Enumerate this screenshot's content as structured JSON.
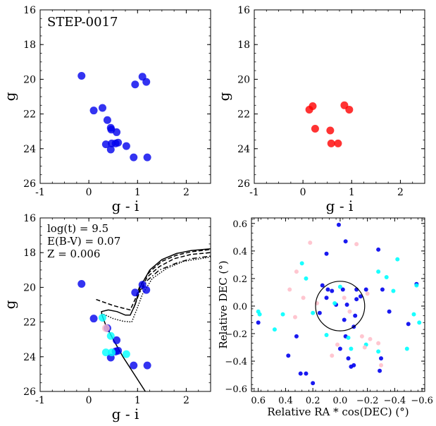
{
  "chart_data": [
    {
      "type": "scatter",
      "panel": "top-left",
      "annotation": "STEP-0017",
      "xlabel": "g - i",
      "ylabel": "g",
      "xlim": [
        -1,
        2.5
      ],
      "ylim": [
        26,
        16
      ],
      "y_inverted": true,
      "xticks": [
        -1,
        0,
        1,
        2
      ],
      "yticks": [
        16,
        18,
        20,
        22,
        24,
        26
      ],
      "series": [
        {
          "color": "#0000ee",
          "points": [
            [
              -0.15,
              19.8
            ],
            [
              1.1,
              19.85
            ],
            [
              1.18,
              20.15
            ],
            [
              0.95,
              20.3
            ],
            [
              0.1,
              21.8
            ],
            [
              0.28,
              21.65
            ],
            [
              0.38,
              22.35
            ],
            [
              0.45,
              22.8
            ],
            [
              0.46,
              22.9
            ],
            [
              0.57,
              23.05
            ],
            [
              0.35,
              23.75
            ],
            [
              0.47,
              23.7
            ],
            [
              0.55,
              23.7
            ],
            [
              0.6,
              23.65
            ],
            [
              0.77,
              23.85
            ],
            [
              0.45,
              24.05
            ],
            [
              0.92,
              24.5
            ],
            [
              1.2,
              24.5
            ]
          ]
        }
      ]
    },
    {
      "type": "scatter",
      "panel": "top-right",
      "xlabel": "g - i",
      "ylabel": "g",
      "xlim": [
        -1,
        2.5
      ],
      "ylim": [
        26,
        16
      ],
      "y_inverted": true,
      "xticks": [
        -1,
        0,
        1,
        2
      ],
      "yticks": [
        16,
        18,
        20,
        22,
        24,
        26
      ],
      "series": [
        {
          "color": "#ff0000",
          "points": [
            [
              0.13,
              21.75
            ],
            [
              0.2,
              21.55
            ],
            [
              0.85,
              21.5
            ],
            [
              0.95,
              21.75
            ],
            [
              0.25,
              22.85
            ],
            [
              0.56,
              22.95
            ],
            [
              0.58,
              23.7
            ],
            [
              0.72,
              23.7
            ]
          ]
        }
      ]
    },
    {
      "type": "scatter",
      "panel": "bottom-left",
      "annotations": [
        "log(t) = 9.5",
        "E(B-V) = 0.07",
        "Z = 0.006"
      ],
      "xlabel": "g - i",
      "ylabel": "g",
      "xlim": [
        -1,
        2.5
      ],
      "ylim": [
        26,
        16
      ],
      "y_inverted": true,
      "xticks": [
        -1,
        0,
        1,
        2
      ],
      "yticks": [
        16,
        18,
        20,
        22,
        24,
        26
      ],
      "series": [
        {
          "color": "#0000ee",
          "points": [
            [
              -0.15,
              19.8
            ],
            [
              1.1,
              19.85
            ],
            [
              1.18,
              20.15
            ],
            [
              0.95,
              20.3
            ],
            [
              0.1,
              21.8
            ],
            [
              0.38,
              22.35
            ],
            [
              0.57,
              23.05
            ],
            [
              0.45,
              24.05
            ],
            [
              0.55,
              23.7
            ],
            [
              0.6,
              23.65
            ],
            [
              0.92,
              24.5
            ],
            [
              1.2,
              24.5
            ]
          ]
        },
        {
          "color": "#00ffff",
          "points": [
            [
              0.28,
              21.75
            ],
            [
              0.45,
              22.8
            ],
            [
              0.35,
              23.75
            ],
            [
              0.47,
              23.75
            ],
            [
              0.77,
              23.85
            ]
          ]
        },
        {
          "color": "#ffc0cb",
          "points": [
            [
              0.35,
              22.35
            ]
          ]
        }
      ],
      "isochrones": [
        {
          "style": "solid",
          "points": [
            [
              1.16,
              26.0
            ],
            [
              0.93,
              25.0
            ],
            [
              0.7,
              24.0
            ],
            [
              0.5,
              23.0
            ],
            [
              0.35,
              22.2
            ],
            [
              0.27,
              21.6
            ],
            [
              0.26,
              21.4
            ],
            [
              0.4,
              21.3
            ],
            [
              0.58,
              21.4
            ],
            [
              0.75,
              21.6
            ],
            [
              0.85,
              21.6
            ],
            [
              0.95,
              21.0
            ],
            [
              1.05,
              20.0
            ],
            [
              1.25,
              19.0
            ],
            [
              1.5,
              18.4
            ],
            [
              1.8,
              18.05
            ],
            [
              2.1,
              17.88
            ],
            [
              2.5,
              17.78
            ]
          ]
        },
        {
          "style": "dashed",
          "points": [
            [
              0.15,
              20.7
            ],
            [
              0.3,
              20.85
            ],
            [
              0.5,
              21.05
            ],
            [
              0.7,
              21.2
            ],
            [
              0.85,
              21.3
            ],
            [
              0.95,
              20.7
            ],
            [
              1.05,
              19.9
            ],
            [
              1.25,
              19.1
            ],
            [
              1.5,
              18.5
            ],
            [
              1.8,
              18.15
            ],
            [
              2.1,
              17.95
            ],
            [
              2.5,
              17.82
            ]
          ]
        },
        {
          "style": "dotted",
          "points": [
            [
              0.3,
              21.55
            ],
            [
              0.5,
              21.8
            ],
            [
              0.7,
              21.95
            ],
            [
              0.88,
              22.0
            ],
            [
              0.98,
              21.3
            ],
            [
              1.1,
              20.4
            ],
            [
              1.3,
              19.5
            ],
            [
              1.6,
              18.9
            ],
            [
              1.95,
              18.5
            ],
            [
              2.5,
              18.25
            ]
          ]
        },
        {
          "style": "dashed",
          "points": [
            [
              0.95,
              21.0
            ],
            [
              1.05,
              20.2
            ],
            [
              1.2,
              19.4
            ],
            [
              1.45,
              18.8
            ],
            [
              1.75,
              18.35
            ],
            [
              2.1,
              18.1
            ],
            [
              2.5,
              18.0
            ]
          ]
        },
        {
          "style": "dashdot",
          "points": [
            [
              0.92,
              21.2
            ],
            [
              1.02,
              20.4
            ],
            [
              1.2,
              19.6
            ],
            [
              1.45,
              19.0
            ],
            [
              1.8,
              18.6
            ],
            [
              2.1,
              18.35
            ],
            [
              2.5,
              18.2
            ]
          ]
        }
      ]
    },
    {
      "type": "scatter",
      "panel": "bottom-right",
      "xlabel": "Relative RA * cos(DEC) (°)",
      "ylabel": "Relative DEC (°)",
      "xlim": [
        0.65,
        -0.62
      ],
      "ylim": [
        -0.62,
        0.64
      ],
      "x_inverted": true,
      "xticks": [
        0.6,
        0.4,
        0.2,
        0.0,
        -0.2,
        -0.4,
        -0.6
      ],
      "xtick_labels": [
        "0.6",
        "0.4",
        "0.2",
        "0.0",
        "−0.2",
        "−0.4",
        "−0.6"
      ],
      "yticks": [
        -0.6,
        -0.4,
        -0.2,
        0.0,
        0.2,
        0.4,
        0.6
      ],
      "ytick_labels": [
        "−0.6",
        "−0.4",
        "−0.2",
        "0.0",
        "0.2",
        "0.4",
        "0.6"
      ],
      "circle": {
        "center": [
          0.0,
          0.0
        ],
        "radius": 0.18
      },
      "series": [
        {
          "color": "#0000ee",
          "points": [
            [
              0.01,
              0.59
            ],
            [
              -0.04,
              0.47
            ],
            [
              0.1,
              0.38
            ],
            [
              -0.28,
              0.41
            ],
            [
              -0.56,
              0.16
            ],
            [
              -0.31,
              0.12
            ],
            [
              -0.19,
              0.12
            ],
            [
              -0.12,
              0.12
            ],
            [
              0.13,
              0.15
            ],
            [
              0.09,
              0.12
            ],
            [
              0.06,
              0.11
            ],
            [
              -0.02,
              0.12
            ],
            [
              -0.12,
              0.05
            ],
            [
              -0.15,
              0.07
            ],
            [
              -0.11,
              -0.07
            ],
            [
              -0.36,
              -0.04
            ],
            [
              -0.5,
              -0.13
            ],
            [
              0.32,
              -0.22
            ],
            [
              0.38,
              -0.36
            ],
            [
              0.29,
              -0.49
            ],
            [
              0.25,
              -0.49
            ],
            [
              0.2,
              -0.56
            ],
            [
              -0.06,
              -0.38
            ],
            [
              -0.1,
              -0.43
            ],
            [
              -0.08,
              -0.44
            ],
            [
              -0.29,
              -0.47
            ],
            [
              0.0,
              -0.31
            ],
            [
              0.03,
              0.01
            ],
            [
              0.1,
              0.06
            ],
            [
              -0.05,
              0.01
            ],
            [
              -0.03,
              -0.1
            ],
            [
              0.15,
              -0.05
            ],
            [
              -0.1,
              -0.15
            ],
            [
              -0.04,
              -0.22
            ],
            [
              -0.3,
              -0.38
            ],
            [
              0.6,
              -0.12
            ]
          ]
        },
        {
          "color": "#00ffff",
          "points": [
            [
              0.6,
              -0.04
            ],
            [
              0.59,
              -0.06
            ],
            [
              0.42,
              -0.06
            ],
            [
              0.48,
              -0.17
            ],
            [
              0.28,
              0.31
            ],
            [
              0.1,
              -0.21
            ],
            [
              -0.28,
              0.25
            ],
            [
              -0.34,
              0.21
            ],
            [
              -0.39,
              0.11
            ],
            [
              -0.42,
              0.34
            ],
            [
              -0.56,
              0.15
            ],
            [
              -0.54,
              -0.06
            ],
            [
              -0.58,
              -0.12
            ],
            [
              -0.49,
              -0.31
            ],
            [
              -0.28,
              -0.33
            ],
            [
              -0.19,
              -0.28
            ],
            [
              -0.08,
              -0.31
            ],
            [
              -0.06,
              -0.23
            ],
            [
              0.2,
              -0.05
            ],
            [
              0.0,
              0.14
            ],
            [
              0.04,
              0.02
            ],
            [
              0.25,
              0.2
            ]
          ]
        },
        {
          "color": "#ffc0cb",
          "points": [
            [
              0.22,
              0.46
            ],
            [
              -0.12,
              0.45
            ],
            [
              0.32,
              0.25
            ],
            [
              0.37,
              0.12
            ],
            [
              0.27,
              0.06
            ],
            [
              0.17,
              0.02
            ],
            [
              -0.07,
              -0.04
            ],
            [
              -0.03,
              0.06
            ],
            [
              -0.2,
              0.09
            ],
            [
              -0.22,
              -0.24
            ],
            [
              -0.18,
              -0.3
            ],
            [
              -0.28,
              -0.27
            ],
            [
              -0.3,
              -0.43
            ],
            [
              0.06,
              -0.36
            ],
            [
              0.02,
              -0.28
            ],
            [
              -0.16,
              -0.22
            ],
            [
              0.33,
              -0.08
            ]
          ]
        }
      ]
    }
  ]
}
